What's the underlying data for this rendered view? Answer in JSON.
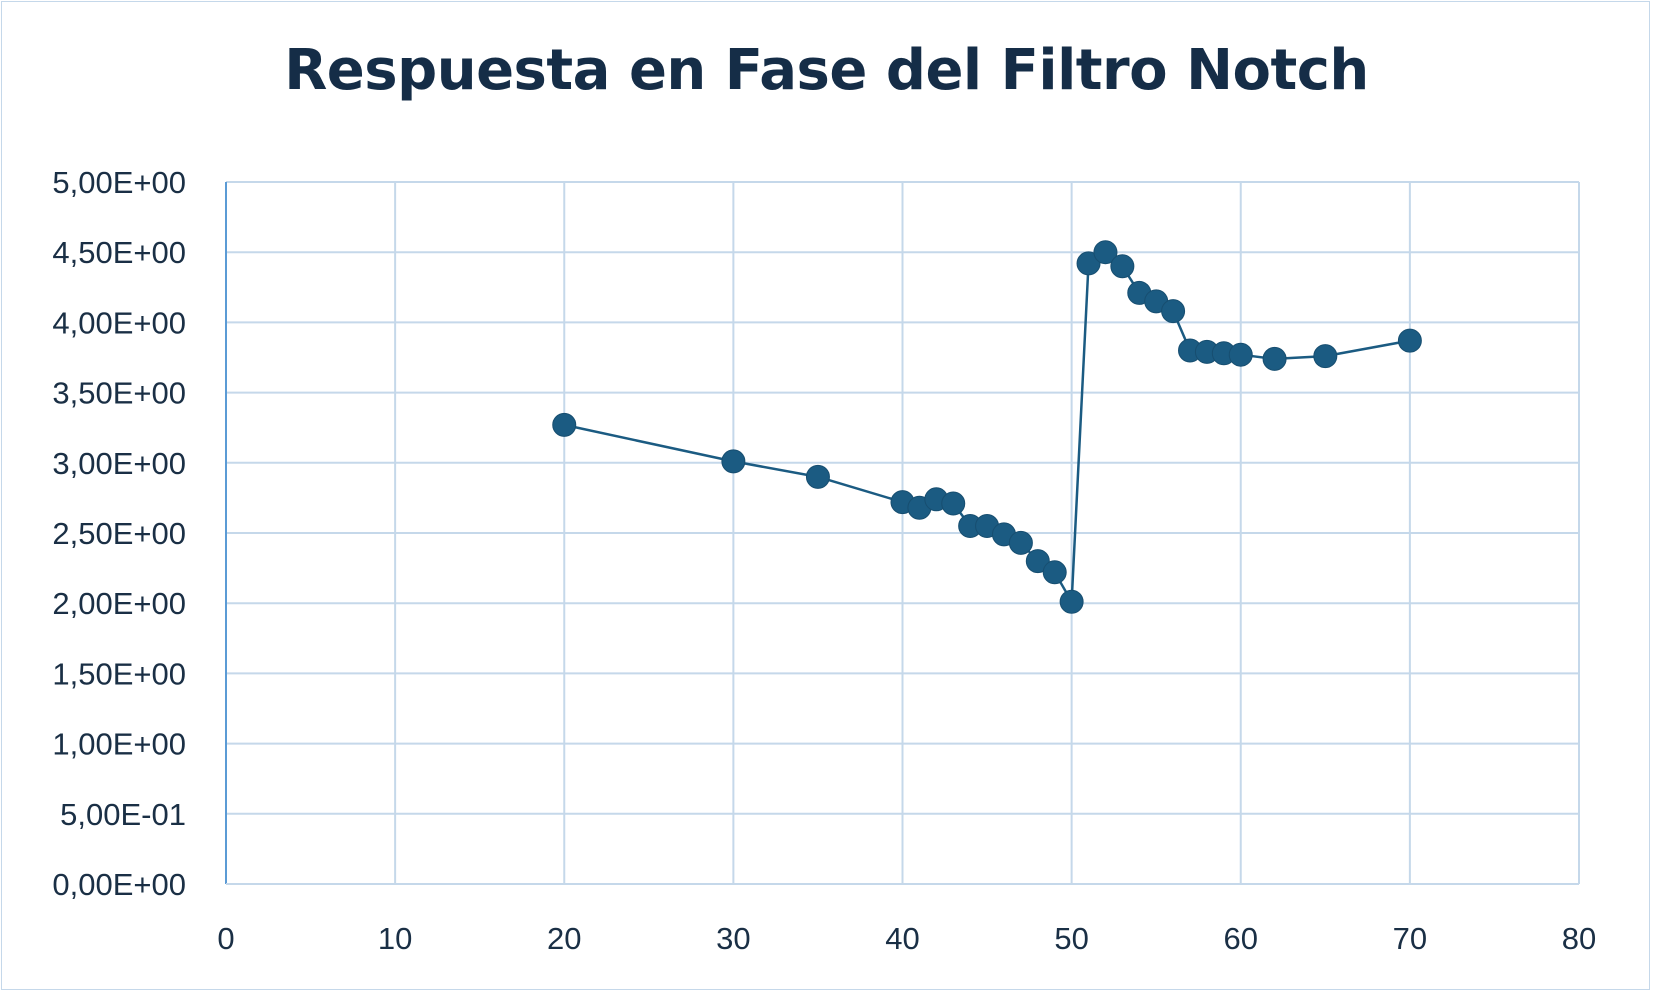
{
  "chart_data": {
    "type": "scatter",
    "title": "Respuesta en Fase del Filtro Notch",
    "xlabel": "",
    "ylabel": "",
    "xlim": [
      0,
      80
    ],
    "ylim": [
      0,
      5
    ],
    "xticks": [
      0,
      10,
      20,
      30,
      40,
      50,
      60,
      70,
      80
    ],
    "xtick_labels": [
      "0",
      "10",
      "20",
      "30",
      "40",
      "50",
      "60",
      "70",
      "80"
    ],
    "yticks": [
      0,
      0.5,
      1,
      1.5,
      2,
      2.5,
      3,
      3.5,
      4,
      4.5,
      5
    ],
    "ytick_labels": [
      "0,00E+00",
      "5,00E-01",
      "1,00E+00",
      "1,50E+00",
      "2,00E+00",
      "2,50E+00",
      "3,00E+00",
      "3,50E+00",
      "4,00E+00",
      "4,50E+00",
      "5,00E+00"
    ],
    "grid": true,
    "legend": "none",
    "series": [
      {
        "x": [
          20,
          30,
          35,
          40,
          41,
          42,
          43,
          44,
          45,
          46,
          47,
          48,
          49,
          50,
          51,
          52,
          53,
          54,
          55,
          56,
          57,
          58,
          59,
          60,
          62,
          65,
          70
        ],
        "y": [
          3.27,
          3.01,
          2.9,
          2.72,
          2.68,
          2.74,
          2.71,
          2.55,
          2.55,
          2.49,
          2.43,
          2.3,
          2.22,
          2.01,
          4.42,
          4.5,
          4.4,
          4.21,
          4.15,
          4.08,
          3.8,
          3.79,
          3.78,
          3.77,
          3.74,
          3.76,
          3.87
        ],
        "color": "#1b5b82"
      }
    ],
    "colors": {
      "series": "#1b5b82",
      "grid": "#c5d8ea",
      "axis": "#5b9bd5",
      "text": "#1a2f45",
      "title": "#152d47"
    }
  }
}
